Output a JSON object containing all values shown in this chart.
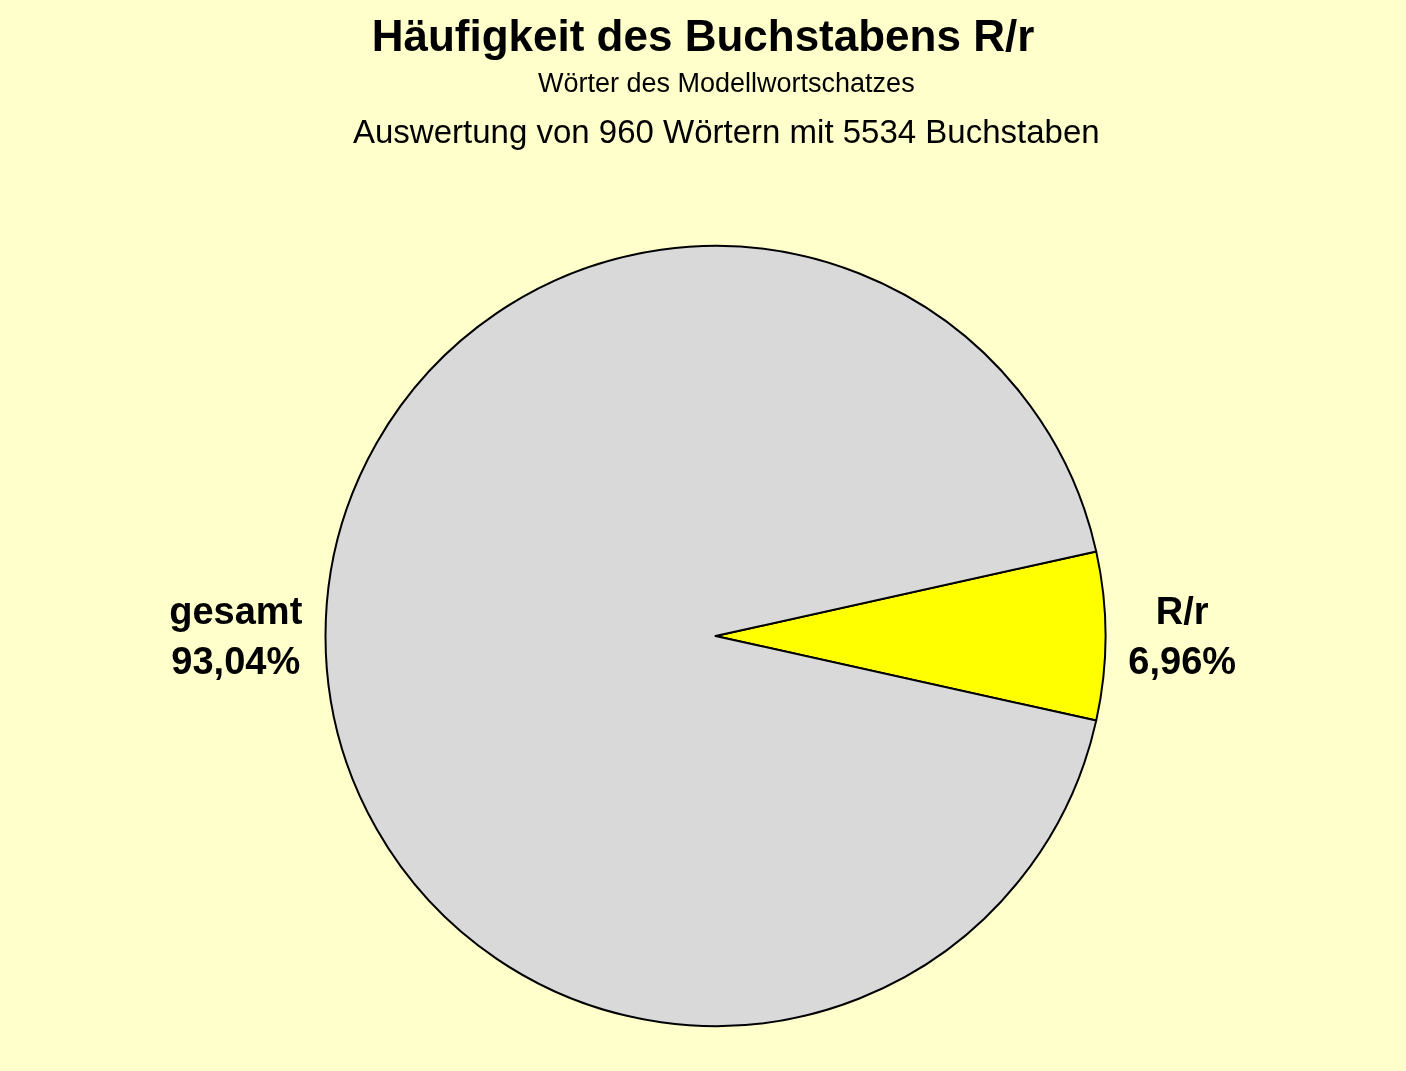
{
  "chart_data": {
    "type": "pie",
    "title": "Häufigkeit des Buchstabens R/r",
    "subtitle": "Wörter des Modellwortschatzes",
    "annotations": [
      "Auswertung von 960 Wörtern mit 5534 Buchstaben"
    ],
    "categories": [
      "R/r",
      "gesamt"
    ],
    "values": [
      6.96,
      93.04
    ],
    "colors": [
      "#ffff00",
      "#d9d9d9"
    ],
    "value_labels": [
      "6,96%",
      "93,04%"
    ]
  }
}
